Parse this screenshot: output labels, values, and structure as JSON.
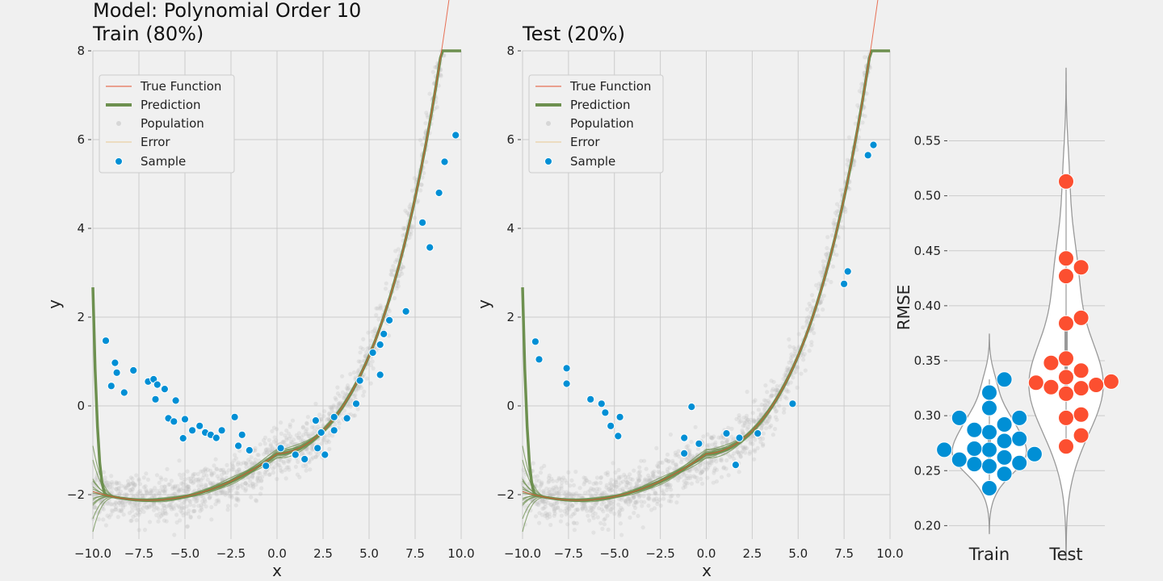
{
  "chart_data": [
    {
      "panel": "train",
      "type": "scatter",
      "title_line1": "Model: Polynomial Order 10",
      "title_line2": "Train (80%)",
      "xlabel": "x",
      "ylabel": "y",
      "xlim": [
        -10,
        10
      ],
      "ylim": [
        -3,
        8
      ],
      "xticks": [
        -10.0,
        -7.5,
        -5.0,
        -2.5,
        0.0,
        2.5,
        5.0,
        7.5,
        10.0
      ],
      "xtick_labels": [
        "−10.0",
        "−7.5",
        "−5.0",
        "−2.5",
        "0.0",
        "2.5",
        "5.0",
        "7.5",
        "10.0"
      ],
      "yticks": [
        -2,
        0,
        2,
        4,
        6,
        8
      ],
      "ytick_labels": [
        "−2",
        "0",
        "2",
        "4",
        "6",
        "8"
      ],
      "legend": {
        "placement": "top-left",
        "entries": [
          "True Function",
          "Prediction",
          "Population",
          "Error",
          "Sample"
        ]
      },
      "sample_points": [
        [
          -9.3,
          1.47
        ],
        [
          -9.0,
          0.45
        ],
        [
          -8.8,
          0.97
        ],
        [
          -8.7,
          0.75
        ],
        [
          -8.3,
          0.3
        ],
        [
          -7.8,
          0.8
        ],
        [
          -7.0,
          0.55
        ],
        [
          -6.7,
          0.6
        ],
        [
          -6.6,
          0.15
        ],
        [
          -6.5,
          0.48
        ],
        [
          -6.1,
          0.38
        ],
        [
          -5.9,
          -0.28
        ],
        [
          -5.6,
          -0.35
        ],
        [
          -5.5,
          0.12
        ],
        [
          -5.1,
          -0.73
        ],
        [
          -5.0,
          -0.3
        ],
        [
          -4.6,
          -0.55
        ],
        [
          -4.2,
          -0.45
        ],
        [
          -3.9,
          -0.6
        ],
        [
          -3.6,
          -0.65
        ],
        [
          -3.3,
          -0.72
        ],
        [
          -3.0,
          -0.55
        ],
        [
          -2.3,
          -0.25
        ],
        [
          -2.1,
          -0.9
        ],
        [
          -1.9,
          -0.65
        ],
        [
          -1.5,
          -1.0
        ],
        [
          -0.6,
          -1.35
        ],
        [
          0.2,
          -0.95
        ],
        [
          1.0,
          -1.1
        ],
        [
          1.5,
          -1.2
        ],
        [
          2.1,
          -0.33
        ],
        [
          2.2,
          -0.95
        ],
        [
          2.4,
          -0.6
        ],
        [
          2.6,
          -1.1
        ],
        [
          3.1,
          -0.55
        ],
        [
          3.1,
          -0.25
        ],
        [
          3.8,
          -0.28
        ],
        [
          4.3,
          0.05
        ],
        [
          4.5,
          0.57
        ],
        [
          5.2,
          1.2
        ],
        [
          5.6,
          0.7
        ],
        [
          5.6,
          1.38
        ],
        [
          5.8,
          1.62
        ],
        [
          6.1,
          1.93
        ],
        [
          7.0,
          2.13
        ],
        [
          7.9,
          4.13
        ],
        [
          8.3,
          3.57
        ],
        [
          8.8,
          4.8
        ],
        [
          9.1,
          5.5
        ],
        [
          9.7,
          6.1
        ]
      ]
    },
    {
      "panel": "test",
      "type": "scatter",
      "title_line1": "",
      "title_line2": "Test (20%)",
      "xlabel": "x",
      "ylabel": "y",
      "xlim": [
        -10,
        10
      ],
      "ylim": [
        -3,
        8
      ],
      "xticks": [
        -10.0,
        -7.5,
        -5.0,
        -2.5,
        0.0,
        2.5,
        5.0,
        7.5,
        10.0
      ],
      "xtick_labels": [
        "−10.0",
        "−7.5",
        "−5.0",
        "−2.5",
        "0.0",
        "2.5",
        "5.0",
        "7.5",
        "10.0"
      ],
      "yticks": [
        -2,
        0,
        2,
        4,
        6,
        8
      ],
      "ytick_labels": [
        "−2",
        "0",
        "2",
        "4",
        "6",
        "8"
      ],
      "legend": {
        "placement": "top-left",
        "entries": [
          "True Function",
          "Prediction",
          "Population",
          "Error",
          "Sample"
        ]
      },
      "sample_points": [
        [
          -9.3,
          1.45
        ],
        [
          -9.1,
          1.05
        ],
        [
          -7.6,
          0.85
        ],
        [
          -7.6,
          0.5
        ],
        [
          -6.3,
          0.15
        ],
        [
          -5.7,
          0.05
        ],
        [
          -5.2,
          -0.45
        ],
        [
          -5.5,
          -0.15
        ],
        [
          -4.8,
          -0.68
        ],
        [
          -4.7,
          -0.25
        ],
        [
          -1.2,
          -0.72
        ],
        [
          -1.2,
          -1.07
        ],
        [
          -0.8,
          -0.02
        ],
        [
          -0.4,
          -0.85
        ],
        [
          1.1,
          -0.62
        ],
        [
          1.6,
          -1.33
        ],
        [
          1.8,
          -0.72
        ],
        [
          2.8,
          -0.62
        ],
        [
          4.7,
          0.05
        ],
        [
          7.5,
          2.75
        ],
        [
          7.7,
          3.03
        ],
        [
          8.8,
          5.65
        ],
        [
          9.1,
          5.88
        ]
      ]
    },
    {
      "panel": "rmse",
      "type": "violin",
      "ylabel": "RMSE",
      "ylim": [
        0.19,
        0.59
      ],
      "yticks": [
        0.2,
        0.25,
        0.3,
        0.35,
        0.4,
        0.45,
        0.5,
        0.55
      ],
      "ytick_labels": [
        "0.20",
        "0.25",
        "0.30",
        "0.35",
        "0.40",
        "0.45",
        "0.50",
        "0.55"
      ],
      "categories": [
        "Train",
        "Test"
      ],
      "series": [
        {
          "values": [
            0.333,
            0.321,
            0.307,
            0.298,
            0.298,
            0.292,
            0.287,
            0.285,
            0.279,
            0.277,
            0.27,
            0.269,
            0.269,
            0.265,
            0.262,
            0.26,
            0.257,
            0.256,
            0.254,
            0.247,
            0.234
          ],
          "color": "#008fd5"
        },
        {
          "values": [
            0.513,
            0.443,
            0.435,
            0.427,
            0.389,
            0.384,
            0.352,
            0.348,
            0.341,
            0.335,
            0.331,
            0.33,
            0.328,
            0.326,
            0.325,
            0.32,
            0.301,
            0.298,
            0.282,
            0.272
          ],
          "color": "#fc4f30"
        }
      ]
    }
  ]
}
